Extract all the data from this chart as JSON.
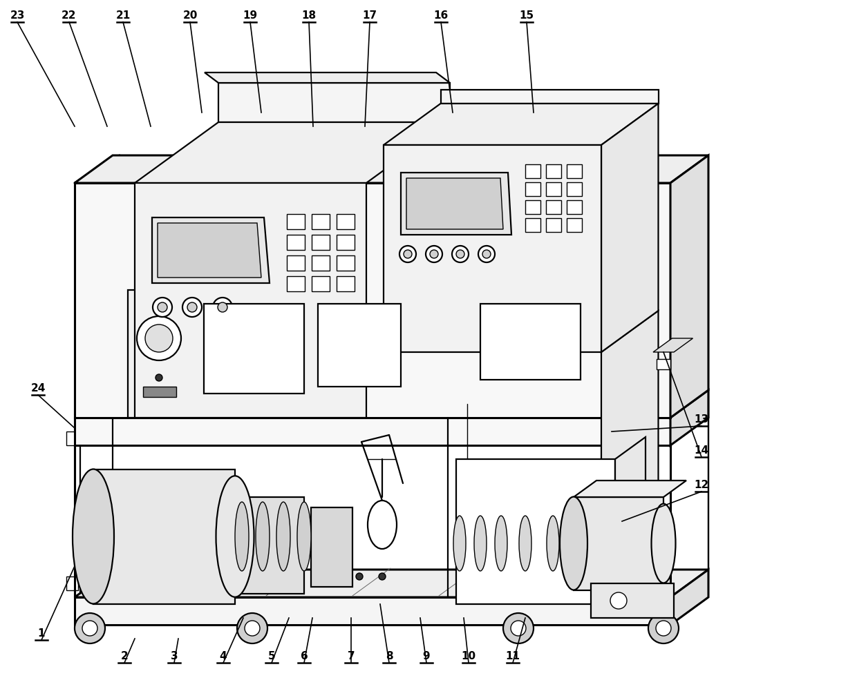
{
  "fig_width": 12.4,
  "fig_height": 10.11,
  "background": "#ffffff",
  "lw_thick": 2.2,
  "lw_main": 1.6,
  "lw_thin": 1.0,
  "font_size": 11,
  "top_labels": [
    [
      "23",
      25,
      30,
      108,
      183
    ],
    [
      "22",
      100,
      30,
      155,
      183
    ],
    [
      "21",
      178,
      30,
      218,
      183
    ],
    [
      "20",
      275,
      30,
      292,
      163
    ],
    [
      "19",
      362,
      30,
      378,
      163
    ],
    [
      "18",
      447,
      30,
      453,
      183
    ],
    [
      "17",
      535,
      30,
      528,
      183
    ],
    [
      "16",
      638,
      30,
      655,
      163
    ],
    [
      "15",
      762,
      30,
      772,
      163
    ]
  ],
  "bottom_labels": [
    [
      "1",
      60,
      925,
      108,
      820
    ],
    [
      "2",
      180,
      958,
      195,
      925
    ],
    [
      "3",
      252,
      958,
      258,
      925
    ],
    [
      "4",
      323,
      958,
      352,
      895
    ],
    [
      "5",
      393,
      958,
      418,
      895
    ],
    [
      "6",
      440,
      958,
      452,
      895
    ],
    [
      "7",
      508,
      958,
      508,
      895
    ],
    [
      "8",
      563,
      958,
      550,
      875
    ],
    [
      "9",
      617,
      958,
      608,
      895
    ],
    [
      "10",
      678,
      958,
      671,
      895
    ],
    [
      "11",
      742,
      958,
      760,
      895
    ]
  ],
  "right_labels": [
    [
      "12",
      1015,
      710,
      900,
      755
    ],
    [
      "13",
      1015,
      615,
      885,
      625
    ],
    [
      "14",
      1015,
      660,
      960,
      510
    ]
  ],
  "left_labels": [
    [
      "24",
      55,
      570,
      108,
      620
    ]
  ]
}
